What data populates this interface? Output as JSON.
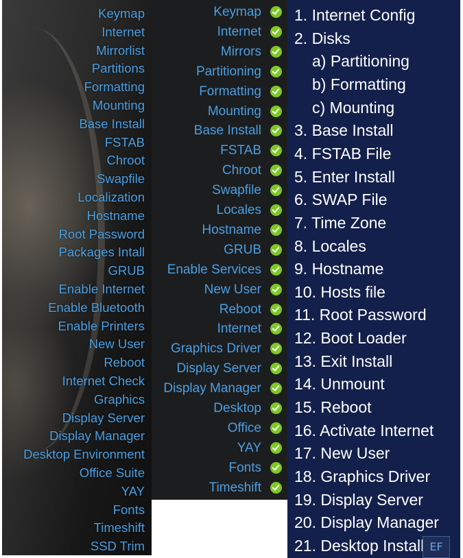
{
  "left_steps": [
    "Keymap",
    "Internet",
    "Mirrorlist",
    "Partitions",
    "Formatting",
    "Mounting",
    "Base Install",
    "FSTAB",
    "Chroot",
    "Swapfile",
    "Localization",
    "Hostname",
    "Root Password",
    "Packages Intall",
    "GRUB",
    "Enable Internet",
    "Enable Bluetooth",
    "Enable Printers",
    "New User",
    "Reboot",
    "Internet Check",
    "Graphics",
    "Display Server",
    "Display Manager",
    "Desktop Environment",
    "Office Suite",
    "YAY",
    "Fonts",
    "Timeshift",
    "SSD Trim"
  ],
  "middle_steps": [
    "Keymap",
    "Internet",
    "Mirrors",
    "Partitioning",
    "Formatting",
    "Mounting",
    "Base Install",
    "FSTAB",
    "Chroot",
    "Swapfile",
    "Locales",
    "Hostname",
    "GRUB",
    "Enable Services",
    "New User",
    "Reboot",
    "Internet",
    "Graphics Driver",
    "Display Server",
    "Display Manager",
    "Desktop",
    "Office",
    "YAY",
    "Fonts",
    "Timeshift"
  ],
  "right_steps": [
    "1. Internet Config",
    "2. Disks",
    "a) Partitioning",
    "b) Formatting",
    "c) Mounting",
    "3. Base Install",
    "4. FSTAB File",
    "5. Enter Install",
    "6. SWAP File",
    "7. Time Zone",
    "8. Locales",
    "9. Hostname",
    "10. Hosts file",
    "11. Root Password",
    "12. Boot Loader",
    "13. Exit Install",
    "14. Unmount",
    "15. Reboot",
    "16. Activate Internet",
    "17. New User",
    "18. Graphics Driver",
    "19. Display Server",
    "20. Display Manager",
    "21. Desktop Install"
  ],
  "right_sub_indices": [
    2,
    3,
    4
  ],
  "logo_text": "EF",
  "colors": {
    "step_blue": "#4a9fe3",
    "check_green": "#7ec827",
    "navy": "#13204b"
  }
}
